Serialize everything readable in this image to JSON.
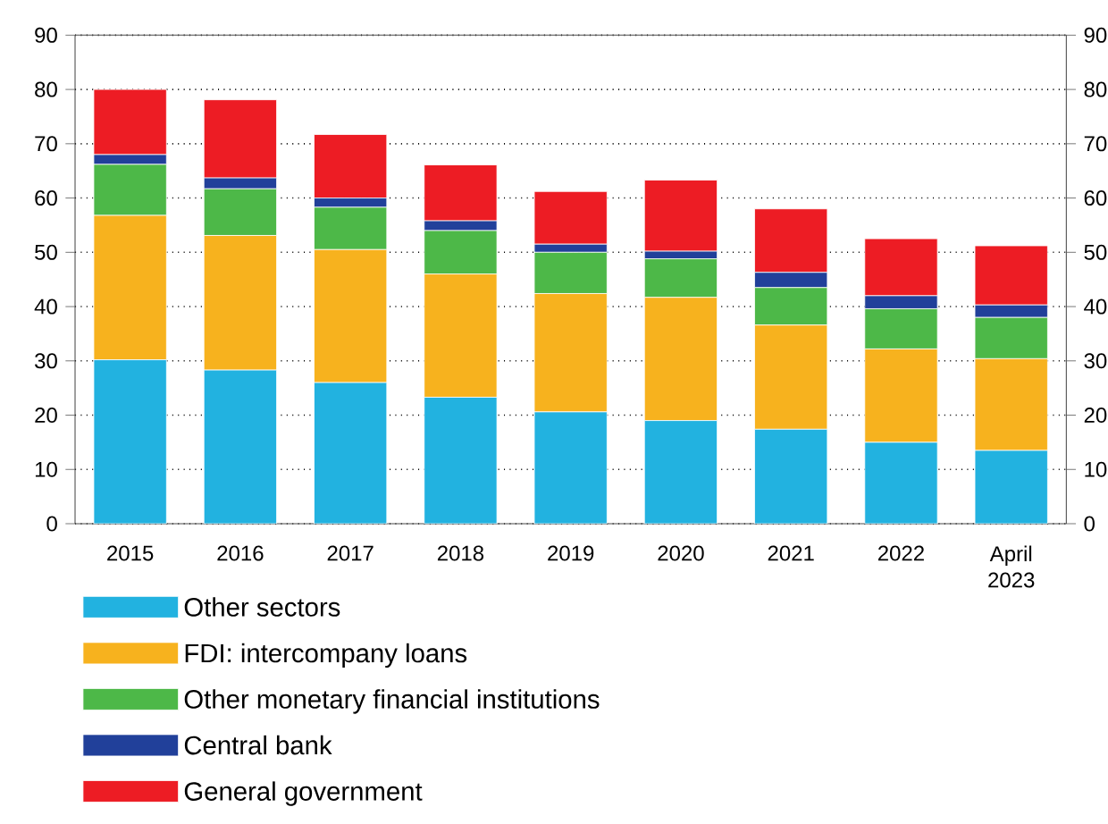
{
  "chart_data": {
    "type": "bar",
    "stacked": true,
    "categories": [
      "2015",
      "2016",
      "2017",
      "2018",
      "2019",
      "2020",
      "2021",
      "2022",
      "April 2023"
    ],
    "series": [
      {
        "name": "Other sectors",
        "color": "#22b2e0",
        "values": [
          30.2,
          28.3,
          26,
          23.3,
          20.6,
          19,
          17.4,
          15,
          13.5
        ]
      },
      {
        "name": "FDI: intercompany loans",
        "color": "#f7b21e",
        "values": [
          26.6,
          24.8,
          24.5,
          22.7,
          21.8,
          22.7,
          19.2,
          17.2,
          16.9
        ]
      },
      {
        "name": "Other monetary financial institutions",
        "color": "#4db848",
        "values": [
          9.4,
          8.6,
          7.8,
          8,
          7.6,
          7.1,
          6.9,
          7.4,
          7.6
        ]
      },
      {
        "name": "Central bank",
        "color": "#21409a",
        "values": [
          1.8,
          2,
          1.7,
          1.8,
          1.5,
          1.4,
          2.8,
          2.4,
          2.3
        ]
      },
      {
        "name": "General government",
        "color": "#ed1c24",
        "values": [
          12,
          14.4,
          11.7,
          10.3,
          9.7,
          13.1,
          11.7,
          10.5,
          10.9
        ]
      }
    ],
    "ylim": [
      0,
      90
    ],
    "yticks": [
      0,
      10,
      20,
      30,
      40,
      50,
      60,
      70,
      80,
      90
    ],
    "y2lim": [
      0,
      90
    ],
    "y2ticks": [
      0,
      10,
      20,
      30,
      40,
      50,
      60,
      70,
      80,
      90
    ],
    "grid": "y",
    "legend": "bottom"
  }
}
